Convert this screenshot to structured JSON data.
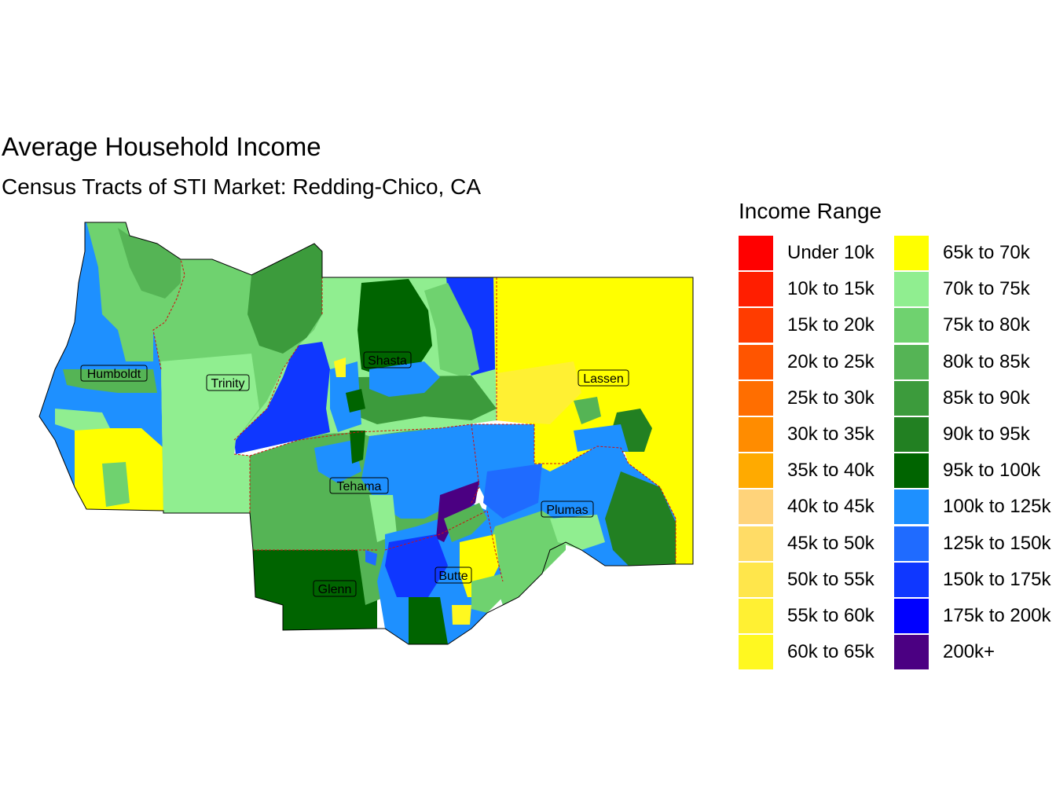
{
  "title": "Average Household Income",
  "subtitle": "Census Tracts of STI Market: Redding-Chico, CA",
  "legend": {
    "title": "Income Range",
    "items": [
      {
        "label": "Under 10k",
        "color": "#ff0000"
      },
      {
        "label": "10k to 15k",
        "color": "#ff1e00"
      },
      {
        "label": "15k to 20k",
        "color": "#ff3c00"
      },
      {
        "label": "20k to 25k",
        "color": "#ff5500"
      },
      {
        "label": "25k to 30k",
        "color": "#ff6e00"
      },
      {
        "label": "30k to 35k",
        "color": "#ff8c00"
      },
      {
        "label": "35k to 40k",
        "color": "#ffaa00"
      },
      {
        "label": "40k to 45k",
        "color": "#ffd37a"
      },
      {
        "label": "45k to 50k",
        "color": "#ffdc66"
      },
      {
        "label": "50k to 55k",
        "color": "#ffe64b"
      },
      {
        "label": "55k to 60k",
        "color": "#fff033"
      },
      {
        "label": "60k to 65k",
        "color": "#fff820"
      },
      {
        "label": "65k to 70k",
        "color": "#ffff00"
      },
      {
        "label": "70k to 75k",
        "color": "#90ee90"
      },
      {
        "label": "75k to 80k",
        "color": "#6fd26f"
      },
      {
        "label": "80k to 85k",
        "color": "#55b455"
      },
      {
        "label": "85k to 90k",
        "color": "#3c9b3c"
      },
      {
        "label": "90k to 95k",
        "color": "#228022"
      },
      {
        "label": "95k to 100k",
        "color": "#006400"
      },
      {
        "label": "100k to 125k",
        "color": "#1e90ff"
      },
      {
        "label": "125k to 150k",
        "color": "#1f6bff"
      },
      {
        "label": "150k to 175k",
        "color": "#0f37ff"
      },
      {
        "label": "175k to 200k",
        "color": "#0000ff"
      },
      {
        "label": "200k+",
        "color": "#4b0082"
      }
    ]
  },
  "counties": [
    "Humboldt",
    "Trinity",
    "Shasta",
    "Lassen",
    "Tehama",
    "Plumas",
    "Glenn",
    "Butte"
  ]
}
